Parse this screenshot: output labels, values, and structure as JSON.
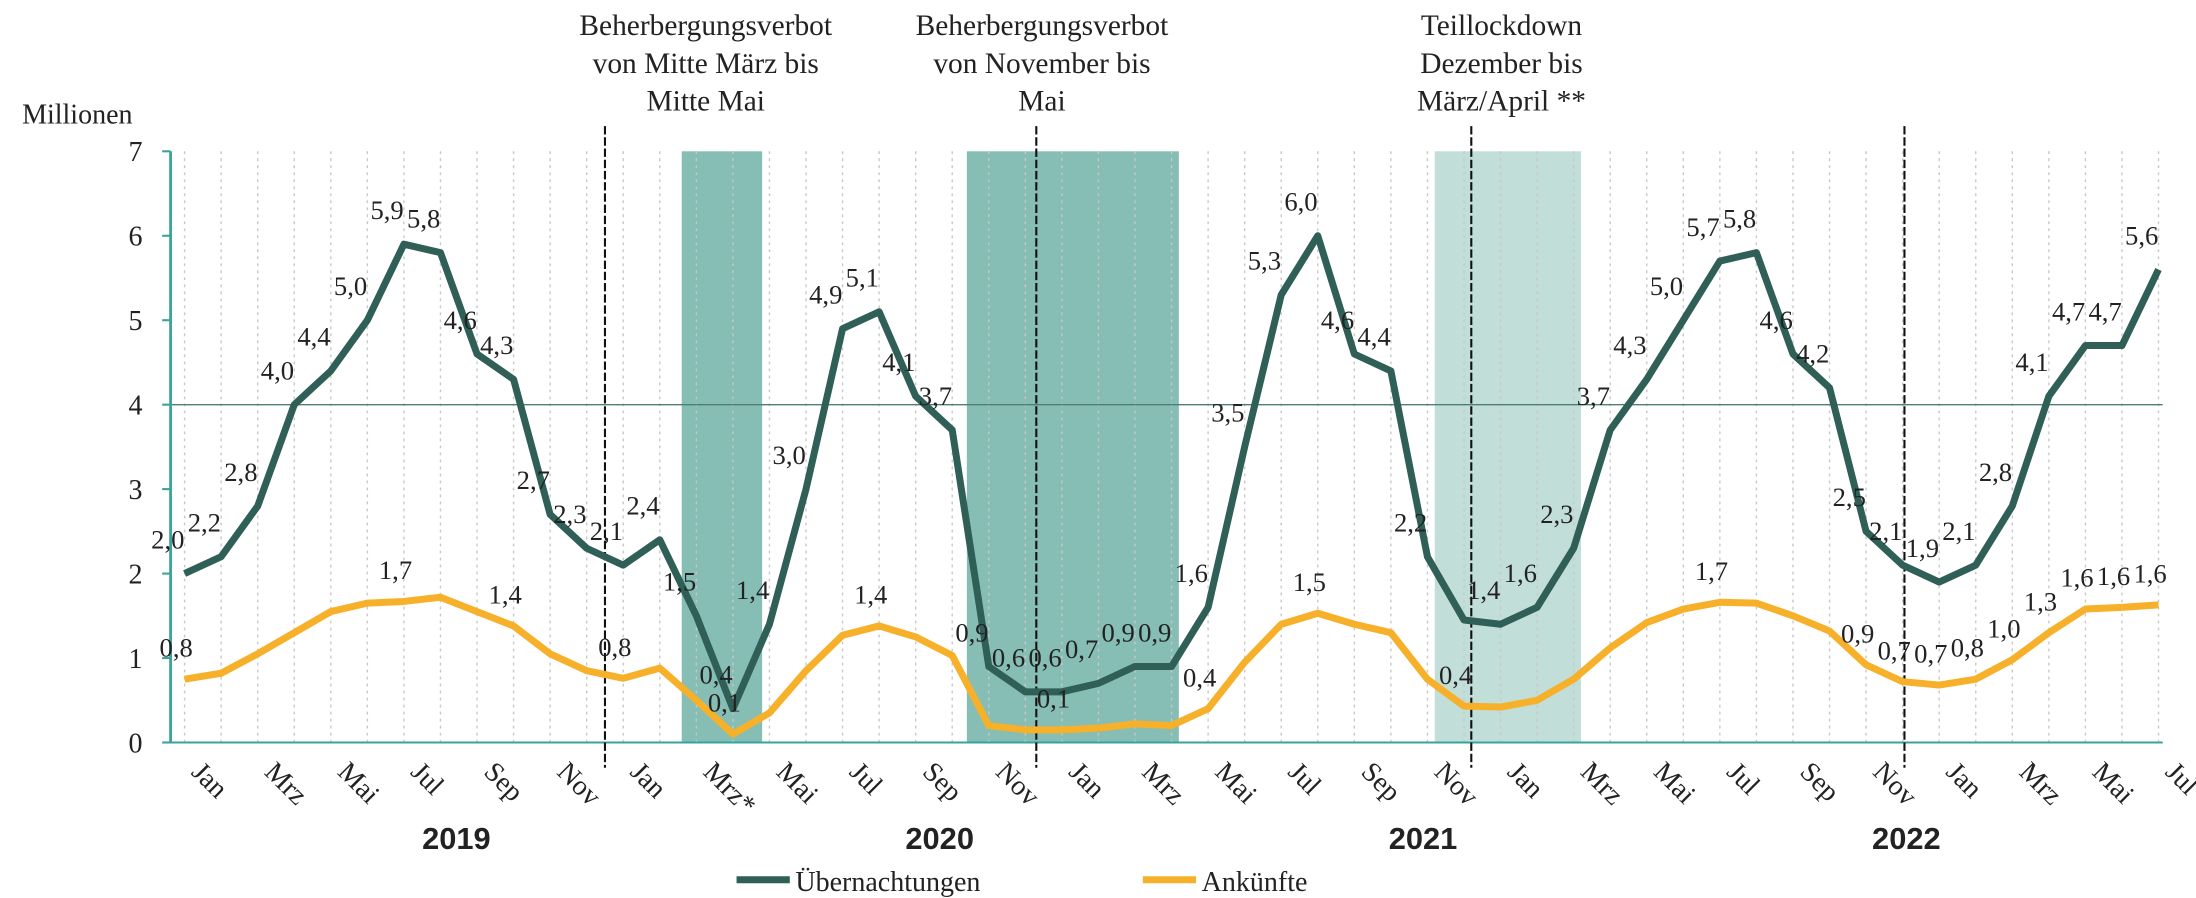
{
  "chart_data": {
    "type": "line",
    "y_axis_label": "Millionen",
    "categories": [
      "Jan",
      null,
      "Mrz",
      null,
      "Mai",
      null,
      "Jul",
      null,
      "Sep",
      null,
      "Nov",
      null,
      "Jan",
      null,
      "Mrz*",
      null,
      "Mai",
      null,
      "Jul",
      null,
      "Sep",
      null,
      "Nov",
      null,
      "Jan",
      null,
      "Mrz",
      null,
      "Mai",
      null,
      "Jul",
      null,
      "Sep",
      null,
      "Nov",
      null,
      "Jan",
      null,
      "Mrz",
      null,
      "Mai",
      null,
      "Jul",
      null,
      "Sep",
      null,
      "Nov",
      null,
      "Jan",
      null,
      "Mrz",
      null,
      "Mai",
      null,
      "Jul"
    ],
    "year_labels": [
      "2019",
      "2020",
      "2021",
      "2022"
    ],
    "annotations": [
      [
        "Beherbergungsverbot",
        "von Mitte März bis",
        "Mitte Mai"
      ],
      [
        "Beherbergungsverbot",
        "von November bis",
        "Mai"
      ],
      [
        "Teillockdown",
        "Dezember bis",
        "März/April **"
      ]
    ],
    "series": [
      {
        "name": "Übernachtungen",
        "color": "#2f5f57",
        "values": [
          2.0,
          2.2,
          2.8,
          4.0,
          4.4,
          5.0,
          5.9,
          5.8,
          4.6,
          4.3,
          2.7,
          2.3,
          2.1,
          2.4,
          1.5,
          0.4,
          1.4,
          3.0,
          4.9,
          5.1,
          4.1,
          3.7,
          0.9,
          0.6,
          0.6,
          0.7,
          0.9,
          0.9,
          1.6,
          3.5,
          5.3,
          6.0,
          4.6,
          4.4,
          2.2,
          1.45,
          1.4,
          1.6,
          2.3,
          3.7,
          4.3,
          5.0,
          5.7,
          5.8,
          4.6,
          4.2,
          2.5,
          2.1,
          1.9,
          2.1,
          2.8,
          4.1,
          4.7,
          4.7,
          5.6
        ],
        "value_labels": [
          "2,0",
          "2,2",
          "2,8",
          "4,0",
          "4,4",
          "5,0",
          "5,9",
          "5,8",
          "4,6",
          "4,3",
          "2,7",
          "2,3",
          "2,1",
          "2,4",
          "1,5",
          "0,4",
          "1,4",
          "3,0",
          "4,9",
          "5,1",
          "4,1",
          "3,7",
          "0,9",
          "0,6",
          "0,6",
          "0,7",
          "0,9",
          "0,9",
          "1,6",
          "3,5",
          "5,3",
          "6,0",
          "4,6",
          "4,4",
          "2,2",
          null,
          "1,4",
          "1,6",
          "2,3",
          "3,7",
          "4,3",
          "5,0",
          "5,7",
          "5,8",
          "4,6",
          "4,2",
          "2,5",
          "2,1",
          "1,9",
          "2,1",
          "2,8",
          "4,1",
          "4,7",
          "4,7",
          "5,6"
        ]
      },
      {
        "name": "Ankünfte",
        "color": "#f6b02a",
        "values": [
          0.75,
          0.82,
          1.05,
          1.3,
          1.55,
          1.65,
          1.67,
          1.72,
          1.55,
          1.38,
          1.05,
          0.85,
          0.76,
          0.88,
          0.5,
          0.1,
          0.35,
          0.85,
          1.27,
          1.38,
          1.25,
          1.03,
          0.2,
          0.15,
          0.15,
          0.17,
          0.22,
          0.2,
          0.4,
          0.95,
          1.4,
          1.53,
          1.4,
          1.3,
          0.75,
          0.43,
          0.42,
          0.5,
          0.75,
          1.12,
          1.42,
          1.58,
          1.66,
          1.65,
          1.5,
          1.32,
          0.92,
          0.72,
          0.68,
          0.75,
          0.98,
          1.3,
          1.58,
          1.6,
          1.63
        ],
        "value_labels": [
          "0,8",
          null,
          null,
          null,
          null,
          null,
          "1,7",
          null,
          null,
          "1,4",
          null,
          null,
          "0,8",
          null,
          null,
          "0,1",
          null,
          null,
          null,
          "1,4",
          null,
          null,
          null,
          null,
          "0,1",
          null,
          null,
          null,
          "0,4",
          null,
          null,
          "1,5",
          null,
          null,
          null,
          "0,4",
          null,
          null,
          null,
          null,
          null,
          null,
          "1,7",
          null,
          null,
          null,
          "0,9",
          "0,7",
          "0,7",
          "0,8",
          "1,0",
          "1,3",
          "1,6",
          "1,6",
          "1,6"
        ]
      }
    ],
    "ylim": [
      0,
      7
    ],
    "yticks": [
      0,
      1,
      2,
      3,
      4,
      5,
      6,
      7
    ],
    "reference_line": 4
  }
}
